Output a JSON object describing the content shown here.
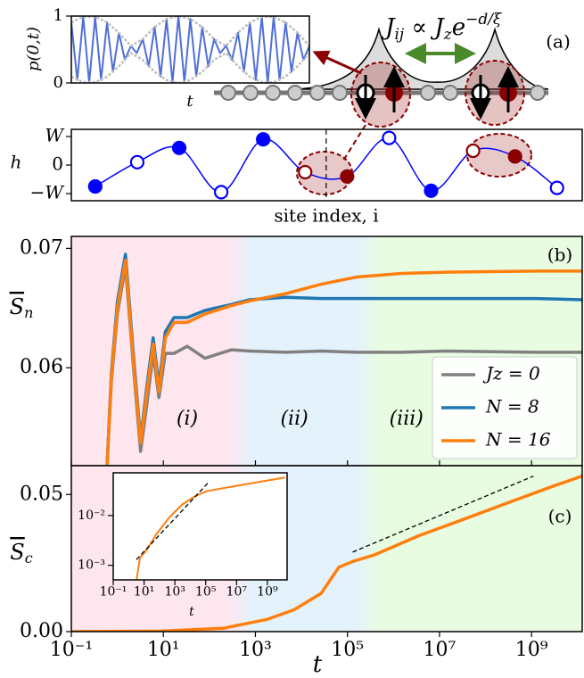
{
  "chart_data": [
    {
      "type": "line",
      "ylabel": "p(0,t)",
      "xlabel": "t",
      "xlim": [
        0,
        40
      ],
      "ylim": [
        0,
        1
      ],
      "yticks": [
        0,
        1
      ],
      "panel_label": "(a)",
      "formula": [
        "J",
        "ij",
        " ∝ J",
        "z",
        "e",
        "−d/ξ"
      ],
      "series": [
        {
          "color": "#4f6fd8",
          "x": [
            0,
            1,
            2,
            3,
            4,
            5,
            6,
            7,
            8,
            9,
            10,
            11,
            12,
            13,
            14,
            15,
            16,
            17,
            18,
            19,
            20,
            21,
            22,
            23,
            24,
            25,
            26,
            27,
            28,
            29,
            30,
            31,
            32,
            33,
            34,
            35,
            36,
            37,
            38,
            39,
            40
          ],
          "values": [
            0.905,
            0.043,
            0.989,
            0,
            0.989,
            0.043,
            0.905,
            0.166,
            0.75,
            0.346,
            0.553,
            0.447,
            0.655,
            0.25,
            0.835,
            0.096,
            0.957,
            0.011,
            1,
            0.011,
            0.957,
            0.096,
            0.835,
            0.25,
            0.655,
            0.447,
            0.553,
            0.346,
            0.75,
            0.166,
            0.905,
            0.043,
            0.989,
            0,
            0.989,
            0.043,
            0.905,
            0.166,
            0.75,
            0.346,
            0.553
          ]
        },
        {
          "color": "#bdbdbd",
          "x": [
            0,
            2,
            4,
            6,
            8,
            10,
            12,
            14,
            16,
            18,
            20,
            22,
            24,
            26,
            28,
            30,
            32,
            34,
            36,
            38,
            40
          ],
          "values": [
            0.905,
            0.989,
            0.989,
            0.905,
            0.75,
            0.553,
            0.655,
            0.835,
            0.957,
            1,
            0.957,
            0.835,
            0.655,
            0.553,
            0.75,
            0.905,
            0.989,
            0.989,
            0.905,
            0.75,
            0.553
          ]
        },
        {
          "color": "#bdbdbd",
          "x": [
            0,
            2,
            4,
            6,
            8,
            10,
            12,
            14,
            16,
            18,
            20,
            22,
            24,
            26,
            28,
            30,
            32,
            34,
            36,
            38,
            40
          ],
          "values": [
            0.095,
            0.011,
            0.011,
            0.095,
            0.25,
            0.447,
            0.345,
            0.165,
            0.043,
            0,
            0.043,
            0.165,
            0.345,
            0.447,
            0.25,
            0.095,
            0.011,
            0.011,
            0.095,
            0.25,
            0.447
          ]
        }
      ]
    },
    {
      "type": "scatter",
      "ylabel": "h",
      "xlabel": "site index, i",
      "xlim": [
        0.43,
        12.6
      ],
      "ylim": [
        -1.25,
        1.25
      ],
      "yticks": [
        {
          "value": 1,
          "label": "W"
        },
        0,
        {
          "value": -1,
          "label": "−W"
        }
      ],
      "x": [
        1,
        2,
        3,
        4,
        5,
        6,
        7,
        8,
        9,
        10,
        11,
        12
      ],
      "values": [
        -0.75,
        0.1,
        0.6,
        -0.95,
        0.9,
        -0.25,
        -0.4,
        0.95,
        -0.9,
        0.5,
        0.3,
        -0.8
      ],
      "colors": [
        "#0000ff",
        "#0000ff",
        "#0000ff",
        "#0000ff",
        "#0000ff",
        "#8b0000",
        "#8b0000",
        "#0000ff",
        "#0000ff",
        "#8b0000",
        "#8b0000",
        "#0000ff"
      ],
      "filled": [
        true,
        false,
        true,
        false,
        true,
        false,
        true,
        false,
        true,
        false,
        true,
        false
      ],
      "line_color": "#0000ff",
      "vline": 6.5
    },
    {
      "type": "line",
      "ylabel": {
        "text": "S",
        "sub": "n"
      },
      "panel_label": "(b)",
      "xscale": "log",
      "xlim": [
        0.1,
        12600000000.0
      ],
      "ylim": [
        0.0518,
        0.071
      ],
      "yticks": [
        0.06,
        0.07
      ],
      "legend": "lower right",
      "shading": {
        "colors": [
          "#fde6ee",
          "#e4f2fc",
          "#e8fce2"
        ],
        "edges": [
          250,
          900,
          150000,
          500000
        ]
      },
      "annotations": [
        {
          "text": "(i)",
          "x": 33,
          "y": 0.0557
        },
        {
          "text": "(ii)",
          "x": 7000,
          "y": 0.0557
        },
        {
          "text": "(iii)",
          "x": 1900000,
          "y": 0.0557
        }
      ],
      "x": [
        0.6,
        0.74,
        1.0,
        1.5,
        2.3,
        3.2,
        4.4,
        6,
        8,
        11,
        17,
        33,
        80,
        300,
        750,
        4500,
        27000,
        160000,
        1500000,
        14000000,
        1200000000,
        12600000000
      ],
      "series": [
        {
          "name": "Jz = 0",
          "color": "#808080",
          "values": [
            0.0519,
            0.0588,
            0.0645,
            0.0685,
            0.0595,
            0.053,
            0.057,
            0.0612,
            0.0575,
            0.0612,
            0.0612,
            0.0618,
            0.0608,
            0.0615,
            0.0614,
            0.0613,
            0.0614,
            0.0613,
            0.0613,
            0.0614,
            0.0613,
            0.0613
          ]
        },
        {
          "name": "N = 8",
          "color": "#1f77b4",
          "values": [
            0.0519,
            0.0595,
            0.0655,
            0.0695,
            0.0605,
            0.054,
            0.0585,
            0.0625,
            0.0585,
            0.063,
            0.0642,
            0.0642,
            0.0648,
            0.0653,
            0.0657,
            0.0659,
            0.0658,
            0.0658,
            0.0658,
            0.0658,
            0.0658,
            0.0657
          ]
        },
        {
          "name": "N = 16",
          "color": "#ff7f0e",
          "values": [
            0.0519,
            0.0592,
            0.065,
            0.069,
            0.06,
            0.0537,
            0.058,
            0.062,
            0.058,
            0.0625,
            0.0638,
            0.0638,
            0.0645,
            0.0652,
            0.0656,
            0.0662,
            0.067,
            0.0676,
            0.0679,
            0.068,
            0.0681,
            0.0681
          ]
        }
      ]
    },
    {
      "type": "line",
      "ylabel": {
        "text": "S",
        "sub": "c"
      },
      "xlabel": "t",
      "panel_label": "(c)",
      "xscale": "log",
      "xlim": [
        0.1,
        12600000000.0
      ],
      "ylim": [
        0,
        0.0605
      ],
      "xticks": [
        {
          "value": 0.1,
          "label": "10⁻¹"
        },
        {
          "value": 10,
          "label": "10¹"
        },
        {
          "value": 1000,
          "label": "10³"
        },
        {
          "value": 100000,
          "label": "10⁵"
        },
        {
          "value": 10000000,
          "label": "10⁷"
        },
        {
          "value": 1000000000,
          "label": "10⁹"
        }
      ],
      "yticks": [
        {
          "value": 0,
          "label": "0.00"
        },
        {
          "value": 0.05,
          "label": "0.05"
        }
      ],
      "shading": {
        "colors": [
          "#fde6ee",
          "#e4f2fc",
          "#e8fce2"
        ],
        "edges": [
          250,
          900,
          150000,
          500000
        ]
      },
      "x": [
        0.1,
        8.7,
        197,
        1840,
        7000,
        27000,
        65000,
        127000,
        390000,
        3600000,
        34000000,
        310000000,
        2900000000,
        12600000000
      ],
      "series": [
        {
          "color": "#ff7f0e",
          "values": [
            0,
            0.0002,
            0.0012,
            0.0045,
            0.008,
            0.014,
            0.0235,
            0.0255,
            0.028,
            0.035,
            0.041,
            0.047,
            0.053,
            0.0567
          ]
        }
      ],
      "fit_lines": [
        {
          "x": [
            130000,
            1100000000
          ],
          "values": [
            0.029,
            0.0567
          ]
        }
      ]
    },
    {
      "type": "line",
      "xlabel": "t",
      "xscale": "log",
      "yscale": "log",
      "xlim": [
        0.1,
        19000000000.0
      ],
      "ylim": [
        0.00051,
        0.072
      ],
      "xticks": [
        {
          "value": 0.1,
          "label": "10⁻¹"
        },
        {
          "value": 10,
          "label": "10¹"
        },
        {
          "value": 1000,
          "label": "10³"
        },
        {
          "value": 100000,
          "label": "10⁵"
        },
        {
          "value": 10000000,
          "label": "10⁷"
        },
        {
          "value": 1000000000,
          "label": "10⁹"
        }
      ],
      "yticks": [
        {
          "value": 0.001,
          "label": "10⁻³"
        },
        {
          "value": 0.01,
          "label": "10⁻²"
        }
      ],
      "x": [
        3.2,
        5.4,
        16,
        59,
        440,
        3200,
        24000,
        120000,
        4900000,
        260000000,
        14000000000
      ],
      "series": [
        {
          "color": "#ff7f0e",
          "values": [
            0.0005,
            0.0014,
            0.0021,
            0.0041,
            0.0092,
            0.017,
            0.025,
            0.031,
            0.038,
            0.047,
            0.058
          ]
        }
      ],
      "fit_lines": [
        {
          "x": [
            3.2,
            170000
          ],
          "values": [
            0.0013,
            0.048
          ]
        }
      ]
    }
  ]
}
